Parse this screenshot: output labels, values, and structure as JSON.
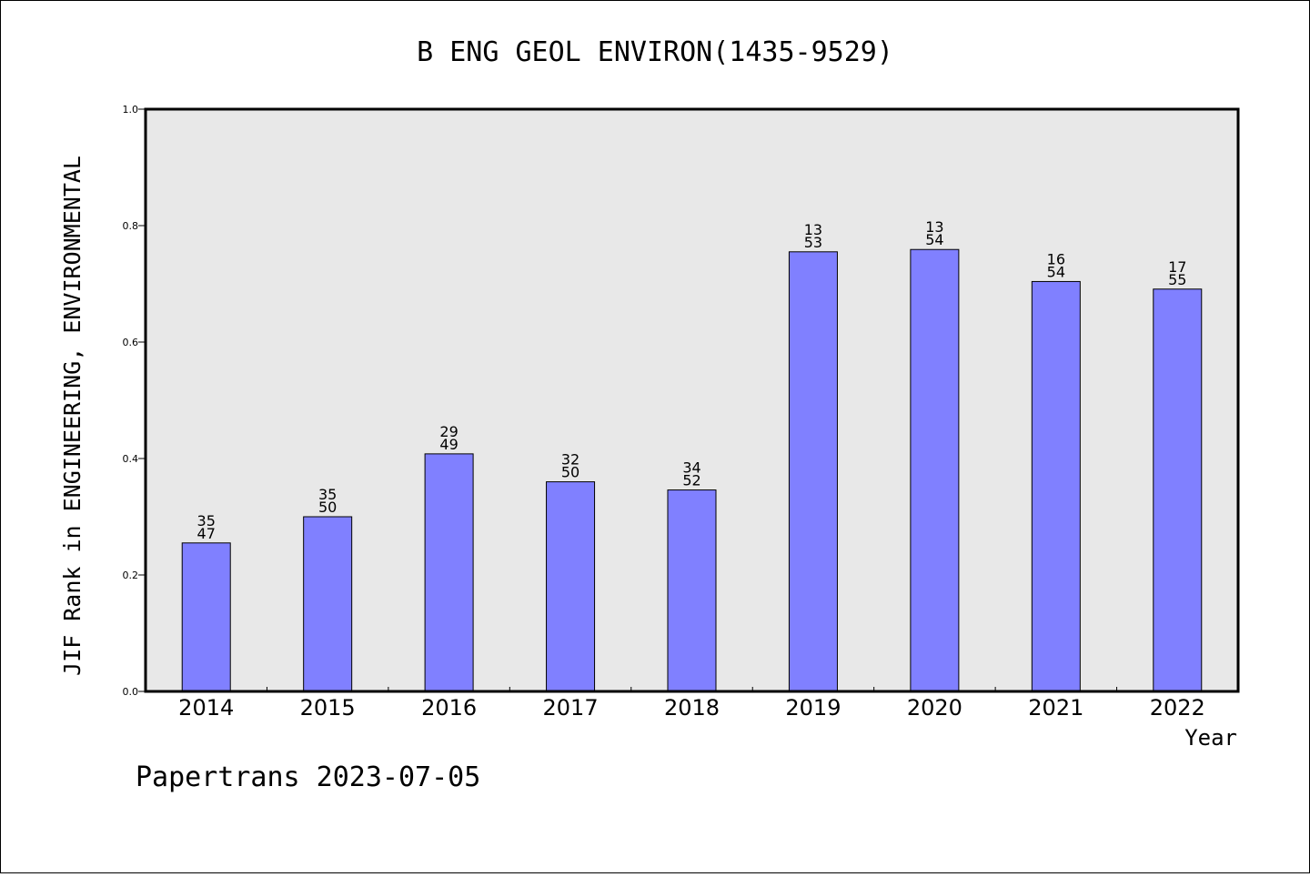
{
  "chart_data": {
    "type": "bar",
    "title": "B ENG GEOL ENVIRON(1435-9529)",
    "xlabel": "Year",
    "ylabel": "JIF Rank in ENGINEERING, ENVIRONMENTAL",
    "ylim": [
      0,
      1.0
    ],
    "yticks": [
      "0.0",
      "0.2",
      "0.4",
      "0.6",
      "0.8",
      "1.0"
    ],
    "categories": [
      "2014",
      "2015",
      "2016",
      "2017",
      "2018",
      "2019",
      "2020",
      "2021",
      "2022"
    ],
    "values": [
      0.255,
      0.3,
      0.408,
      0.36,
      0.346,
      0.755,
      0.759,
      0.704,
      0.691
    ],
    "rank": [
      "35",
      "35",
      "29",
      "32",
      "34",
      "13",
      "13",
      "16",
      "17"
    ],
    "total": [
      "47",
      "50",
      "49",
      "50",
      "52",
      "53",
      "54",
      "54",
      "55"
    ],
    "bar_color": "#8080ff",
    "plot_bg": "#e8e8e8",
    "grid": false,
    "legend": "none"
  },
  "footer": "Papertrans 2023-07-05"
}
